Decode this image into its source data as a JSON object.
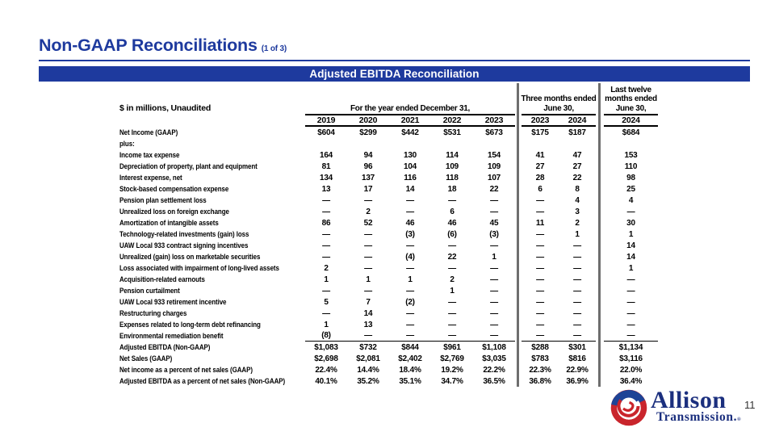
{
  "slide": {
    "title": "Non-GAAP Reconciliations",
    "title_suffix": "(1 of 3)",
    "page_number": "11"
  },
  "colors": {
    "accent_blue": "#1e3a9e",
    "divider_gray": "#6e6e6e",
    "logo_navy": "#1b2f7e",
    "logo_red": "#c9252c",
    "logo_blue": "#1d4396"
  },
  "table": {
    "header_bar": "Adjusted EBITDA Reconciliation",
    "units_note": "$ in millions, Unaudited",
    "col_groups": [
      {
        "lines": [
          "For the year ended December 31,"
        ],
        "years": [
          "2019",
          "2020",
          "2021",
          "2022",
          "2023"
        ]
      },
      {
        "lines": [
          "Three months ended",
          "June 30,"
        ],
        "years": [
          "2023",
          "2024"
        ]
      },
      {
        "lines": [
          "Last twelve",
          "months ended",
          "June 30,"
        ],
        "years": [
          "2024"
        ]
      }
    ],
    "rows": [
      {
        "label": "Net Income (GAAP)",
        "values": [
          "$604",
          "$299",
          "$442",
          "$531",
          "$673",
          "$175",
          "$187",
          "$684"
        ]
      },
      {
        "label": "plus:",
        "values": [
          "",
          "",
          "",
          "",
          "",
          "",
          "",
          ""
        ]
      },
      {
        "label": "Income tax expense",
        "values": [
          "164",
          "94",
          "130",
          "114",
          "154",
          "41",
          "47",
          "153"
        ]
      },
      {
        "label": "Depreciation of property, plant and equipment",
        "values": [
          "81",
          "96",
          "104",
          "109",
          "109",
          "27",
          "27",
          "110"
        ]
      },
      {
        "label": "Interest expense, net",
        "values": [
          "134",
          "137",
          "116",
          "118",
          "107",
          "28",
          "22",
          "98"
        ]
      },
      {
        "label": "Stock-based compensation expense",
        "values": [
          "13",
          "17",
          "14",
          "18",
          "22",
          "6",
          "8",
          "25"
        ]
      },
      {
        "label": "Pension plan settlement loss",
        "values": [
          "—",
          "—",
          "—",
          "—",
          "—",
          "—",
          "4",
          "4"
        ]
      },
      {
        "label": "Unrealized loss on foreign exchange",
        "values": [
          "—",
          "2",
          "—",
          "6",
          "—",
          "—",
          "3",
          "—"
        ]
      },
      {
        "label": "Amortization of intangible assets",
        "values": [
          "86",
          "52",
          "46",
          "46",
          "45",
          "11",
          "2",
          "30"
        ]
      },
      {
        "label": "Technology-related investments (gain) loss",
        "values": [
          "—",
          "—",
          "(3)",
          "(6)",
          "(3)",
          "—",
          "1",
          "1"
        ]
      },
      {
        "label": "UAW Local 933 contract signing incentives",
        "values": [
          "—",
          "—",
          "—",
          "—",
          "—",
          "—",
          "—",
          "14"
        ]
      },
      {
        "label": "Unrealized (gain) loss on marketable securities",
        "values": [
          "—",
          "—",
          "(4)",
          "22",
          "1",
          "—",
          "—",
          "14"
        ]
      },
      {
        "label": "Loss associated with impairment of long-lived assets",
        "values": [
          "2",
          "—",
          "—",
          "—",
          "—",
          "—",
          "—",
          "1"
        ]
      },
      {
        "label": "Acquisition-related earnouts",
        "values": [
          "1",
          "1",
          "1",
          "2",
          "—",
          "—",
          "—",
          "—"
        ]
      },
      {
        "label": "Pension curtailment",
        "values": [
          "—",
          "—",
          "—",
          "1",
          "—",
          "—",
          "—",
          "—"
        ]
      },
      {
        "label": "UAW Local 933 retirement incentive",
        "values": [
          "5",
          "7",
          "(2)",
          "—",
          "—",
          "—",
          "—",
          "—"
        ]
      },
      {
        "label": "Restructuring charges",
        "values": [
          "—",
          "14",
          "—",
          "—",
          "—",
          "—",
          "—",
          "—"
        ]
      },
      {
        "label": "Expenses related to long-term debt refinancing",
        "values": [
          "1",
          "13",
          "—",
          "—",
          "—",
          "—",
          "—",
          "—"
        ]
      },
      {
        "label": "Environmental remediation benefit",
        "values": [
          "(8)",
          "—",
          "—",
          "—",
          "—",
          "—",
          "—",
          "—"
        ],
        "underline_values": true
      },
      {
        "label": "Adjusted EBITDA (Non-GAAP)",
        "values": [
          "$1,083",
          "$732",
          "$844",
          "$961",
          "$1,108",
          "$288",
          "$301",
          "$1,134"
        ]
      },
      {
        "label": "Net Sales (GAAP)",
        "values": [
          "$2,698",
          "$2,081",
          "$2,402",
          "$2,769",
          "$3,035",
          "$783",
          "$816",
          "$3,116"
        ]
      },
      {
        "label": "Net income as a percent of net sales (GAAP)",
        "values": [
          "22.4%",
          "14.4%",
          "18.4%",
          "19.2%",
          "22.2%",
          "22.3%",
          "22.9%",
          "22.0%"
        ]
      },
      {
        "label": "Adjusted EBITDA as a percent of net sales (Non-GAAP)",
        "values": [
          "40.1%",
          "35.2%",
          "35.1%",
          "34.7%",
          "36.5%",
          "36.8%",
          "36.9%",
          "36.4%"
        ]
      }
    ]
  },
  "logo": {
    "line1": "Allison",
    "line2": "Transmission.",
    "reg": "®"
  }
}
